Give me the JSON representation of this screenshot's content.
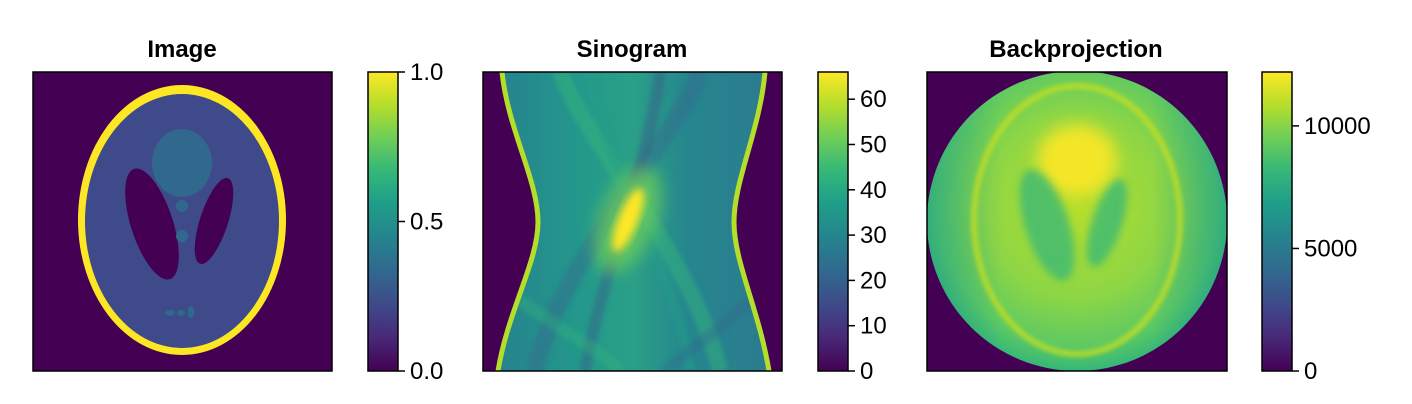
{
  "chart_data": [
    {
      "type": "heatmap",
      "title": "Image",
      "subject": "Shepp-Logan phantom",
      "colormap": "viridis",
      "colorbar": {
        "range": [
          0.0,
          1.0
        ],
        "ticks": [
          0.0,
          0.5,
          1.0
        ],
        "tick_labels": [
          "0.0",
          "0.5",
          "1.0"
        ]
      },
      "xlabel": "",
      "ylabel": "",
      "axis_ticks_shown": false
    },
    {
      "type": "heatmap",
      "title": "Sinogram",
      "colormap": "viridis",
      "colorbar": {
        "range": [
          0,
          66
        ],
        "ticks": [
          0,
          10,
          20,
          30,
          40,
          50,
          60
        ],
        "tick_labels": [
          "0",
          "10",
          "20",
          "30",
          "40",
          "50",
          "60"
        ]
      },
      "xlabel": "",
      "ylabel": "",
      "axis_ticks_shown": false
    },
    {
      "type": "heatmap",
      "title": "Backprojection",
      "colormap": "viridis",
      "colorbar": {
        "range": [
          0,
          12200
        ],
        "ticks": [
          0,
          5000,
          10000
        ],
        "tick_labels": [
          "0",
          "5000",
          "10000"
        ]
      },
      "xlabel": "",
      "ylabel": "",
      "axis_ticks_shown": false
    }
  ]
}
